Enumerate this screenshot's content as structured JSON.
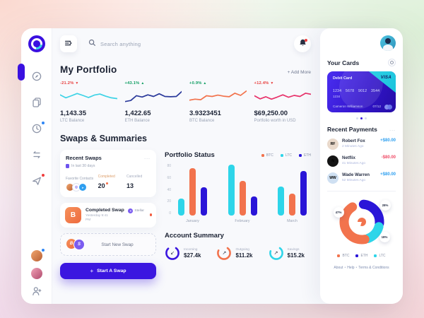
{
  "topbar": {
    "search_placeholder": "Search anything"
  },
  "icons": {
    "sidebar": [
      "compass-icon",
      "copy-icon",
      "clock-icon",
      "swap-arrows-icon",
      "paper-plane-icon",
      "add-user-icon"
    ],
    "topbar": [
      "menu-icon",
      "search-icon",
      "bell-icon"
    ]
  },
  "portfolio": {
    "title": "My Portfolio",
    "add_more": "+ Add More",
    "cards": [
      {
        "change": "-21.2%",
        "arrow": "▼",
        "change_color": "#e8403f",
        "value": "1,143.35",
        "label": "LTC Balance",
        "color": "#3ed3e6",
        "spark": [
          62,
          40,
          55,
          72,
          58,
          42,
          60,
          68,
          52,
          40,
          34
        ]
      },
      {
        "change": "+43.1%",
        "arrow": "▲",
        "change_color": "#0f9e62",
        "value": "1,422.65",
        "label": "ETH Balance",
        "color": "#2b3a9b",
        "spark": [
          12,
          20,
          56,
          46,
          62,
          50,
          70,
          50,
          48,
          50,
          88
        ]
      },
      {
        "change": "+0.9%",
        "arrow": "▲",
        "change_color": "#0f9e62",
        "value": "3.9323451",
        "label": "BTC Balance",
        "color": "#f2734d",
        "spark": [
          22,
          30,
          26,
          55,
          50,
          60,
          52,
          48,
          74,
          58,
          90
        ]
      },
      {
        "change": "+12.4%",
        "arrow": "▼",
        "change_color": "#e8403f",
        "value": "$69,250.00",
        "label": "Portfolio worth in USD",
        "color": "#e8336b",
        "spark": [
          55,
          32,
          48,
          30,
          45,
          62,
          44,
          58,
          50,
          74,
          66
        ]
      }
    ]
  },
  "swaps_summaries": {
    "title": "Swaps & Summaries",
    "recent_swaps": {
      "title": "Recent Swaps",
      "menu": "...",
      "subtitle": "In last 30 days",
      "favorite_contacts_label": "Favorite Contacts",
      "completed_label": "Completed",
      "completed_value": "20",
      "cancelled_label": "Cancelled",
      "cancelled_value": "13"
    },
    "completed_swap": {
      "title": "Completed Swap",
      "time": "Yesterday 9:41 PM",
      "network": "Stellar",
      "coin_symbol": "B"
    },
    "start_new_swap_label": "Start New Swap",
    "start_swap_plus": "+",
    "start_swap_button": "Start A Swap"
  },
  "account_summary": {
    "title": "Account Summary",
    "items": [
      {
        "label": "Incoming",
        "value": "$27.4k",
        "arrow": "↙",
        "color": "#3b16e0",
        "pct": 78
      },
      {
        "label": "Outgoing",
        "value": "$11.2k",
        "arrow": "↗",
        "color": "#f2734d",
        "pct": 72
      },
      {
        "label": "Savings",
        "value": "$15.2k",
        "arrow": "↗",
        "color": "#2ed5e9",
        "pct": 70
      }
    ]
  },
  "right_panel": {
    "your_cards_title": "Your Cards",
    "card": {
      "type": "Debit Card",
      "brand": "VISA",
      "number_line1": "1234 5678 9012 3544",
      "number_line2": "1234",
      "holder": "Cameron Williamson",
      "expiry": "07/12"
    },
    "recent_payments": {
      "title": "Recent Payments",
      "menu": "...",
      "items": [
        {
          "name": "Robert Fox",
          "time": "2 Minutes Ago",
          "amount": "+$80.00",
          "amount_color": "#2d9ff0",
          "initials": "RF",
          "avatar_bg": "#e9d9cb",
          "avatar_fg": "#7d5b42"
        },
        {
          "name": "Netflix",
          "time": "41 Minutes Ago",
          "amount": "-$80.00",
          "amount_color": "#ef4b66",
          "initials": "N",
          "avatar_bg": "#141414",
          "avatar_fg": "#e50914"
        },
        {
          "name": "Wade Warren",
          "time": "52 Minutes Ago",
          "amount": "+$80.00",
          "amount_color": "#2d9ff0",
          "initials": "WW",
          "avatar_bg": "#cfe0f2",
          "avatar_fg": "#35557d"
        }
      ]
    },
    "footer_links": [
      "About",
      "Help",
      "Terms & Conditions"
    ],
    "footer_separator": "•"
  },
  "chart_data": [
    {
      "type": "bar",
      "title": "Portfolio Status",
      "categories": [
        "January",
        "February",
        "March"
      ],
      "series": [
        {
          "name": "BTC",
          "color": "#f2734d",
          "values": [
            74,
            55,
            34
          ]
        },
        {
          "name": "LTC",
          "color": "#2ed5e9",
          "values": [
            27,
            80,
            46
          ]
        },
        {
          "name": "ETH",
          "color": "#2a16d8",
          "values": [
            44,
            30,
            70
          ]
        }
      ],
      "bar_order": [
        "LTC",
        "BTC",
        "ETH"
      ],
      "xlabel": "",
      "ylabel": "",
      "ylim": [
        0,
        80
      ],
      "yticks": [
        0,
        20,
        40,
        60,
        80
      ],
      "grid": false,
      "legend_position": "top-right"
    },
    {
      "type": "donut",
      "slices": [
        {
          "name": "BTC",
          "pct": 47,
          "label": "47%",
          "color": "#f2734d"
        },
        {
          "name": "ETH",
          "pct": 28,
          "label": "28%",
          "color": "#2a16d8"
        },
        {
          "name": "LTC",
          "pct": 18,
          "label": "18%",
          "color": "#2ed5e9"
        }
      ],
      "draw_order": [
        "ETH",
        "LTC",
        "BTC"
      ],
      "legend": [
        "BTC",
        "ETH",
        "LTC"
      ],
      "legend_position": "bottom"
    }
  ]
}
